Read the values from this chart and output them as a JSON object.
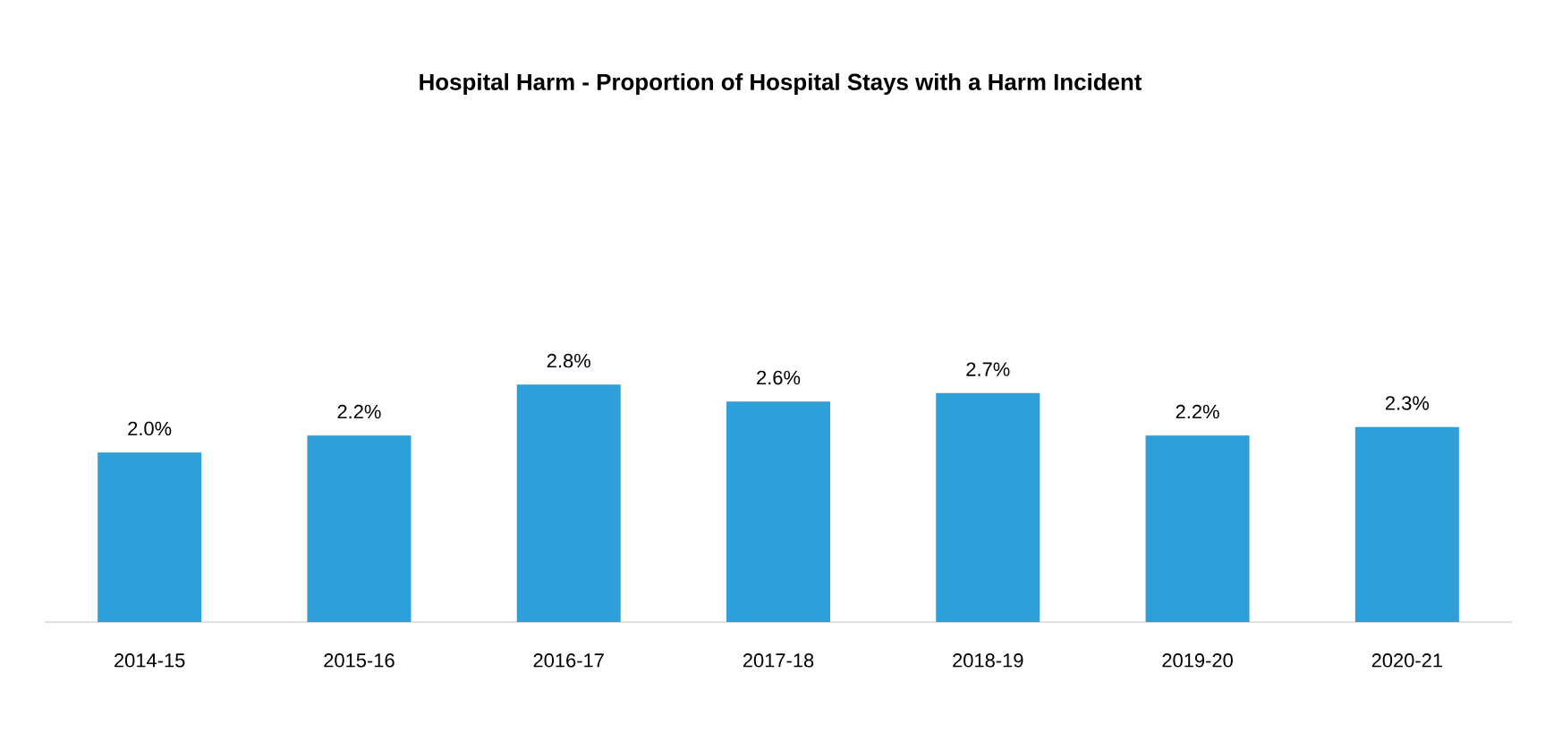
{
  "chart_data": {
    "type": "bar",
    "title": "Hospital Harm - Proportion of Hospital Stays with a Harm Incident",
    "categories": [
      "2014-15",
      "2015-16",
      "2016-17",
      "2017-18",
      "2018-19",
      "2019-20",
      "2020-21"
    ],
    "values": [
      2.0,
      2.2,
      2.8,
      2.6,
      2.7,
      2.2,
      2.3
    ],
    "value_labels": [
      "2.0%",
      "2.2%",
      "2.8%",
      "2.6%",
      "2.7%",
      "2.2%",
      "2.3%"
    ],
    "color": "#2e9fd9"
  }
}
